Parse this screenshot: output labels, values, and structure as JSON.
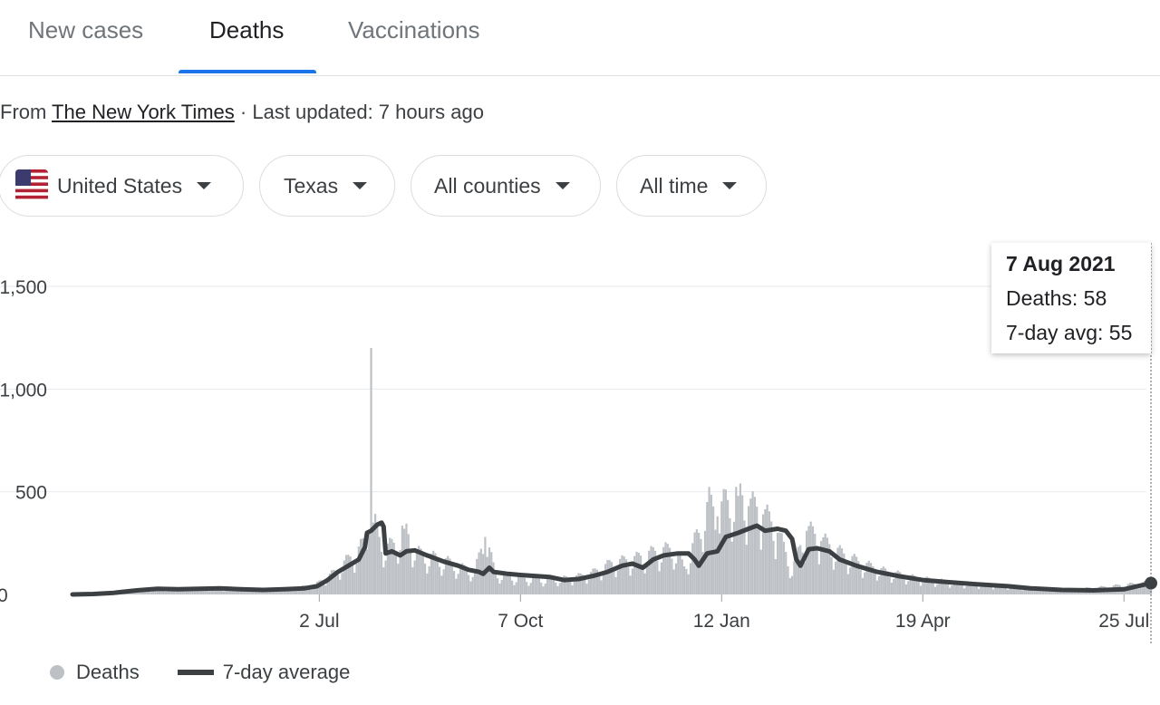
{
  "tabs": [
    {
      "label": "New cases",
      "active": false
    },
    {
      "label": "Deaths",
      "active": true
    },
    {
      "label": "Vaccinations",
      "active": false
    }
  ],
  "source": {
    "prefix": "From ",
    "link": "The New York Times",
    "suffix": " · Last updated: 7 hours ago"
  },
  "filters": {
    "country": "United States",
    "country_icon": "us-flag-icon",
    "state": "Texas",
    "county": "All counties",
    "range": "All time"
  },
  "tooltip": {
    "date": "7 Aug 2021",
    "deaths": "Deaths: 58",
    "avg": "7-day avg: 55"
  },
  "legend": {
    "deaths": "Deaths",
    "avg": "7-day average"
  },
  "colors": {
    "accent": "#1a73e8",
    "bars": "#bdc1c6",
    "avg_line": "#3c4043"
  },
  "chart_data": {
    "type": "bar",
    "title": "",
    "xlabel": "",
    "ylabel": "",
    "ylim": [
      0,
      1500
    ],
    "y_ticks": [
      0,
      500,
      1000,
      1500
    ],
    "y_tick_labels": [
      "0",
      "500",
      "1,000",
      "1,500"
    ],
    "x_tick_labels": [
      "2 Jul",
      "7 Oct",
      "12 Jan",
      "19 Apr",
      "25 Jul"
    ],
    "x_tick_dates": [
      "2020-07-02",
      "2020-10-07",
      "2021-01-12",
      "2021-04-19",
      "2021-07-25"
    ],
    "x_range": [
      "2020-03-05",
      "2021-08-07"
    ],
    "grid": true,
    "legend_position": "bottom-left",
    "series": [
      {
        "name": "Deaths",
        "type": "bar",
        "points": [
          [
            "2020-03-05",
            0
          ],
          [
            "2020-03-25",
            5
          ],
          [
            "2020-04-15",
            25
          ],
          [
            "2020-05-05",
            30
          ],
          [
            "2020-05-25",
            28
          ],
          [
            "2020-06-15",
            25
          ],
          [
            "2020-06-30",
            45
          ],
          [
            "2020-07-05",
            80
          ],
          [
            "2020-07-10",
            110
          ],
          [
            "2020-07-15",
            160
          ],
          [
            "2020-07-20",
            200
          ],
          [
            "2020-07-24",
            250
          ],
          [
            "2020-07-26",
            300
          ],
          [
            "2020-07-27",
            1200
          ],
          [
            "2020-07-28",
            350
          ],
          [
            "2020-07-31",
            280
          ],
          [
            "2020-08-03",
            220
          ],
          [
            "2020-08-07",
            240
          ],
          [
            "2020-08-12",
            320
          ],
          [
            "2020-08-18",
            200
          ],
          [
            "2020-08-25",
            180
          ],
          [
            "2020-09-01",
            160
          ],
          [
            "2020-09-08",
            130
          ],
          [
            "2020-09-15",
            110
          ],
          [
            "2020-09-20",
            280
          ],
          [
            "2020-09-25",
            100
          ],
          [
            "2020-10-05",
            80
          ],
          [
            "2020-10-20",
            70
          ],
          [
            "2020-11-01",
            80
          ],
          [
            "2020-11-10",
            100
          ],
          [
            "2020-11-20",
            150
          ],
          [
            "2020-12-01",
            170
          ],
          [
            "2020-12-10",
            200
          ],
          [
            "2020-12-20",
            220
          ],
          [
            "2020-12-25",
            130
          ],
          [
            "2021-01-01",
            300
          ],
          [
            "2021-01-05",
            450
          ],
          [
            "2021-01-10",
            380
          ],
          [
            "2021-01-15",
            460
          ],
          [
            "2021-01-20",
            480
          ],
          [
            "2021-01-25",
            430
          ],
          [
            "2021-02-01",
            390
          ],
          [
            "2021-02-08",
            300
          ],
          [
            "2021-02-15",
            120
          ],
          [
            "2021-02-22",
            310
          ],
          [
            "2021-03-01",
            260
          ],
          [
            "2021-03-10",
            200
          ],
          [
            "2021-03-20",
            150
          ],
          [
            "2021-04-01",
            110
          ],
          [
            "2021-04-15",
            80
          ],
          [
            "2021-05-01",
            60
          ],
          [
            "2021-05-15",
            50
          ],
          [
            "2021-06-01",
            40
          ],
          [
            "2021-06-15",
            30
          ],
          [
            "2021-07-01",
            25
          ],
          [
            "2021-07-15",
            35
          ],
          [
            "2021-07-25",
            45
          ],
          [
            "2021-08-07",
            58
          ]
        ]
      },
      {
        "name": "7-day average",
        "type": "line",
        "points": [
          [
            "2020-03-05",
            0
          ],
          [
            "2020-03-15",
            2
          ],
          [
            "2020-03-25",
            8
          ],
          [
            "2020-04-05",
            20
          ],
          [
            "2020-04-15",
            28
          ],
          [
            "2020-04-25",
            25
          ],
          [
            "2020-05-05",
            28
          ],
          [
            "2020-05-15",
            30
          ],
          [
            "2020-05-25",
            25
          ],
          [
            "2020-06-05",
            22
          ],
          [
            "2020-06-15",
            25
          ],
          [
            "2020-06-25",
            30
          ],
          [
            "2020-07-01",
            40
          ],
          [
            "2020-07-06",
            70
          ],
          [
            "2020-07-11",
            110
          ],
          [
            "2020-07-16",
            140
          ],
          [
            "2020-07-21",
            170
          ],
          [
            "2020-07-24",
            230
          ],
          [
            "2020-07-25",
            300
          ],
          [
            "2020-07-27",
            310
          ],
          [
            "2020-07-30",
            340
          ],
          [
            "2020-08-01",
            350
          ],
          [
            "2020-08-02",
            330
          ],
          [
            "2020-08-03",
            200
          ],
          [
            "2020-08-06",
            210
          ],
          [
            "2020-08-10",
            190
          ],
          [
            "2020-08-13",
            210
          ],
          [
            "2020-08-17",
            215
          ],
          [
            "2020-08-23",
            190
          ],
          [
            "2020-08-31",
            160
          ],
          [
            "2020-09-07",
            140
          ],
          [
            "2020-09-12",
            120
          ],
          [
            "2020-09-17",
            110
          ],
          [
            "2020-09-19",
            100
          ],
          [
            "2020-09-22",
            130
          ],
          [
            "2020-09-24",
            110
          ],
          [
            "2020-10-01",
            100
          ],
          [
            "2020-10-07",
            95
          ],
          [
            "2020-10-14",
            90
          ],
          [
            "2020-10-21",
            85
          ],
          [
            "2020-10-28",
            70
          ],
          [
            "2020-11-04",
            75
          ],
          [
            "2020-11-11",
            90
          ],
          [
            "2020-11-18",
            110
          ],
          [
            "2020-11-25",
            140
          ],
          [
            "2020-11-30",
            150
          ],
          [
            "2020-12-05",
            130
          ],
          [
            "2020-12-10",
            170
          ],
          [
            "2020-12-15",
            190
          ],
          [
            "2020-12-22",
            200
          ],
          [
            "2020-12-27",
            200
          ],
          [
            "2020-12-30",
            170
          ],
          [
            "2021-01-01",
            140
          ],
          [
            "2021-01-05",
            200
          ],
          [
            "2021-01-10",
            210
          ],
          [
            "2021-01-14",
            280
          ],
          [
            "2021-01-20",
            300
          ],
          [
            "2021-01-25",
            320
          ],
          [
            "2021-01-29",
            335
          ],
          [
            "2021-02-02",
            310
          ],
          [
            "2021-02-08",
            320
          ],
          [
            "2021-02-12",
            310
          ],
          [
            "2021-02-15",
            270
          ],
          [
            "2021-02-17",
            170
          ],
          [
            "2021-02-19",
            140
          ],
          [
            "2021-02-21",
            180
          ],
          [
            "2021-02-23",
            220
          ],
          [
            "2021-02-27",
            225
          ],
          [
            "2021-03-05",
            210
          ],
          [
            "2021-03-10",
            170
          ],
          [
            "2021-03-18",
            140
          ],
          [
            "2021-03-28",
            110
          ],
          [
            "2021-04-07",
            90
          ],
          [
            "2021-04-19",
            70
          ],
          [
            "2021-05-01",
            60
          ],
          [
            "2021-05-15",
            50
          ],
          [
            "2021-05-30",
            40
          ],
          [
            "2021-06-10",
            30
          ],
          [
            "2021-06-25",
            22
          ],
          [
            "2021-07-10",
            20
          ],
          [
            "2021-07-25",
            25
          ],
          [
            "2021-08-07",
            55
          ]
        ]
      }
    ]
  }
}
